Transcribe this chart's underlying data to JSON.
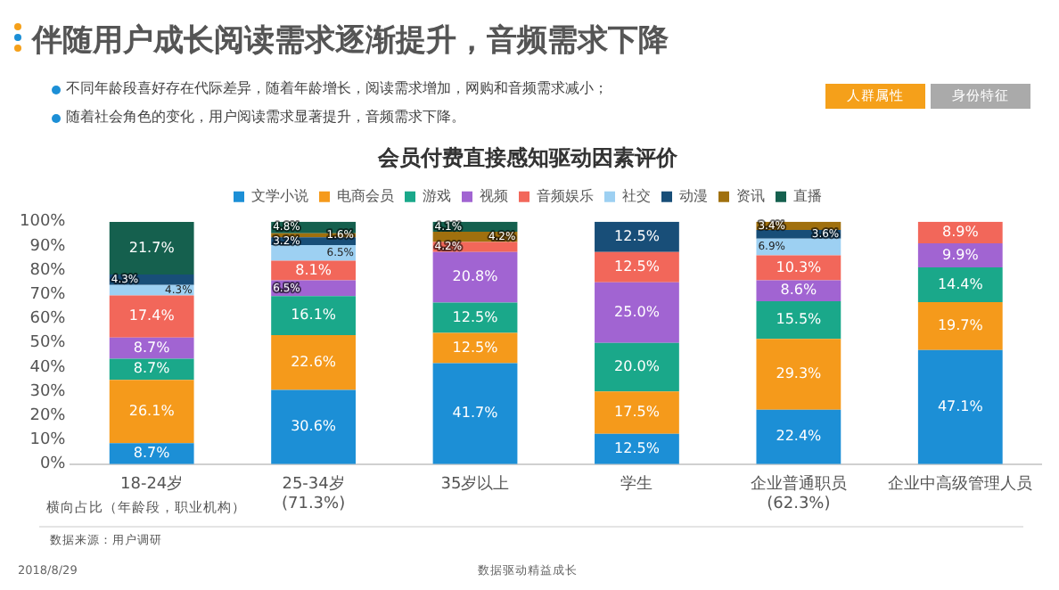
{
  "chart_data": {
    "type": "bar",
    "stacked": true,
    "title": "会员付费直接感知驱动因素评价",
    "categories": [
      "18-24岁",
      "25-34岁\n(71.3%)",
      "35岁以上",
      "学生",
      "企业普通职员\n(62.3%)",
      "企业中高级管理人员"
    ],
    "series": [
      {
        "name": "文学小说",
        "color": "#1c8fd6",
        "values": [
          8.7,
          30.6,
          41.7,
          12.5,
          22.4,
          47.1
        ],
        "value_labels": [
          "8.7%",
          "30.6%",
          "41.7%",
          "12.5%",
          "22.4%",
          "47.1%"
        ]
      },
      {
        "name": "电商会员",
        "color": "#f59a1b",
        "values": [
          26.1,
          22.6,
          12.5,
          17.5,
          29.3,
          19.7
        ],
        "value_labels": [
          "26.1%",
          "22.6%",
          "12.5%",
          "17.5%",
          "29.3%",
          "19.7%"
        ]
      },
      {
        "name": "游戏",
        "color": "#1aa88a",
        "values": [
          8.7,
          16.1,
          12.5,
          20.0,
          15.5,
          14.4
        ],
        "value_labels": [
          "8.7%",
          "16.1%",
          "12.5%",
          "20.0%",
          "15.5%",
          "14.4%"
        ]
      },
      {
        "name": "视频",
        "color": "#a164d2",
        "values": [
          8.7,
          6.5,
          20.8,
          25.0,
          8.6,
          9.9
        ],
        "value_labels": [
          "8.7%",
          "6.5%",
          "20.8%",
          "25.0%",
          "8.6%",
          "9.9%"
        ]
      },
      {
        "name": "音频娱乐",
        "color": "#f2675a",
        "values": [
          17.4,
          8.1,
          4.2,
          12.5,
          10.3,
          8.9
        ],
        "value_labels": [
          "17.4%",
          "8.1%",
          "4.2%",
          "12.5%",
          "10.3%",
          "8.9%"
        ]
      },
      {
        "name": "社交",
        "color": "#9dd0f2",
        "values": [
          4.3,
          6.5,
          null,
          null,
          6.9,
          null
        ],
        "value_labels": [
          "4.3%",
          "6.5%",
          null,
          null,
          "6.9%",
          null
        ]
      },
      {
        "name": "动漫",
        "color": "#184e78",
        "values": [
          4.3,
          3.2,
          null,
          12.5,
          3.6,
          null
        ],
        "value_labels": [
          "4.3%",
          "3.2%",
          null,
          "12.5%",
          "3.6%",
          null
        ]
      },
      {
        "name": "资讯",
        "color": "#a0700e",
        "values": [
          null,
          1.6,
          4.2,
          null,
          3.4,
          null
        ],
        "value_labels": [
          null,
          "1.6%",
          "4.2%",
          null,
          "3.4%",
          null
        ]
      },
      {
        "name": "直播",
        "color": "#15604e",
        "values": [
          21.7,
          4.8,
          4.1,
          null,
          null,
          null
        ],
        "value_labels": [
          "21.7%",
          "4.8%",
          "4.1%",
          null,
          null,
          null
        ]
      }
    ],
    "ylim": [
      0,
      100
    ],
    "yticks": [
      {
        "value": 0,
        "label": "0%"
      },
      {
        "value": 10,
        "label": "10%"
      },
      {
        "value": 20,
        "label": "20%"
      },
      {
        "value": 30,
        "label": "30%"
      },
      {
        "value": 40,
        "label": "40%"
      },
      {
        "value": 50,
        "label": "50%"
      },
      {
        "value": 60,
        "label": "60%"
      },
      {
        "value": 70,
        "label": "70%"
      },
      {
        "value": 80,
        "label": "80%"
      },
      {
        "value": 90,
        "label": "90%"
      },
      {
        "value": 100,
        "label": "100%"
      }
    ],
    "grid": false,
    "legend": "top",
    "annotations": [
      "伴随用户成长阅读需求逐渐提升，音频需求下降",
      "不同年龄段喜好存在代际差异，随着年龄增长，阅读需求增加，网购和音频需求减小；",
      "随着社会角色的变化，用户阅读需求显著提升，音频需求下降。",
      "人群属性",
      "身份特征",
      "横向占比（年龄段，职业机构）",
      "数据来源：用户调研",
      "2018/8/29",
      "数据驱动精益成长"
    ]
  }
}
